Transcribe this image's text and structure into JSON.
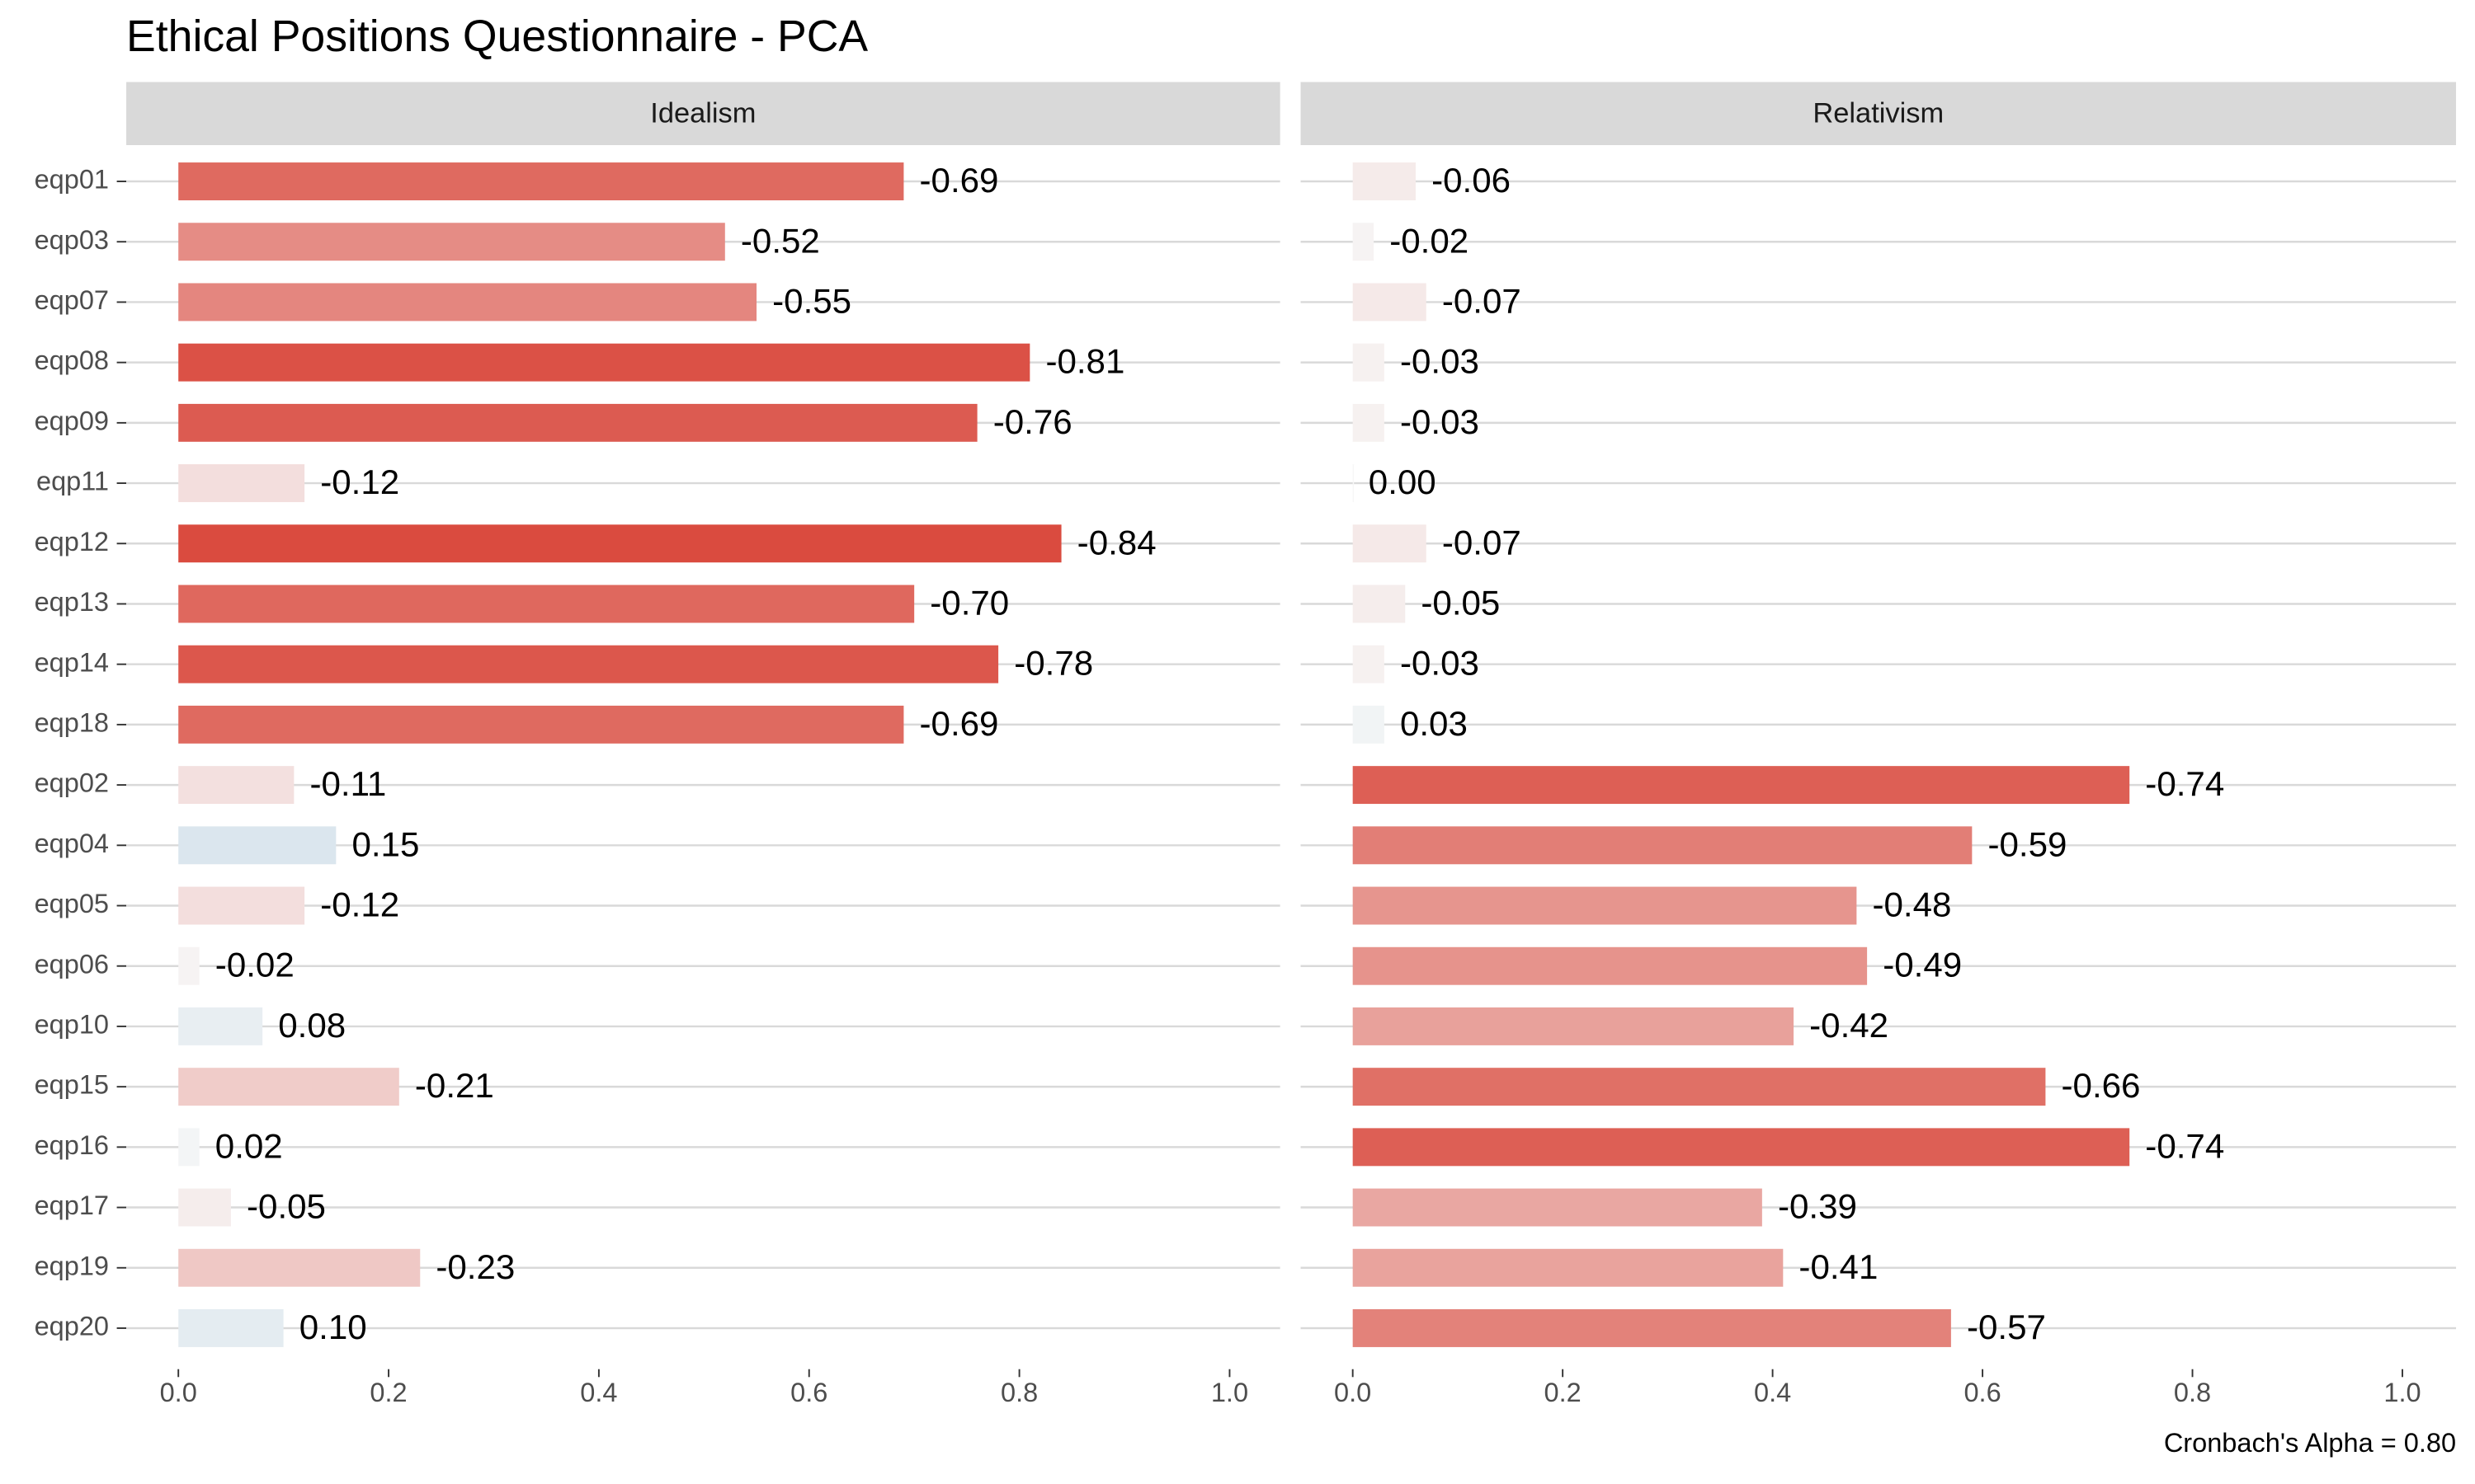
{
  "chart_data": {
    "type": "bar",
    "title": "Ethical Positions Questionnaire - PCA",
    "categories": [
      "eqp01",
      "eqp03",
      "eqp07",
      "eqp08",
      "eqp09",
      "eqp11",
      "eqp12",
      "eqp13",
      "eqp14",
      "eqp18",
      "eqp02",
      "eqp04",
      "eqp05",
      "eqp06",
      "eqp10",
      "eqp15",
      "eqp16",
      "eqp17",
      "eqp19",
      "eqp20"
    ],
    "facets": [
      {
        "name": "Idealism",
        "values": [
          -0.69,
          -0.52,
          -0.55,
          -0.81,
          -0.76,
          -0.12,
          -0.84,
          -0.7,
          -0.78,
          -0.69,
          -0.11,
          0.15,
          -0.12,
          -0.02,
          0.08,
          -0.21,
          0.02,
          -0.05,
          -0.23,
          0.1
        ],
        "value_labels": [
          "-0.69",
          "-0.52",
          "-0.55",
          "-0.81",
          "-0.76",
          "-0.12",
          "-0.84",
          "-0.70",
          "-0.78",
          "-0.69",
          "-0.11",
          "0.15",
          "-0.12",
          "-0.02",
          "0.08",
          "-0.21",
          "0.02",
          "-0.05",
          "-0.23",
          "0.10"
        ]
      },
      {
        "name": "Relativism",
        "values": [
          -0.06,
          -0.02,
          -0.07,
          -0.03,
          -0.03,
          0.0,
          -0.07,
          -0.05,
          -0.03,
          0.03,
          -0.74,
          -0.59,
          -0.48,
          -0.49,
          -0.42,
          -0.66,
          -0.74,
          -0.39,
          -0.41,
          -0.57
        ],
        "value_labels": [
          "-0.06",
          "-0.02",
          "-0.07",
          "-0.03",
          "-0.03",
          "0.00",
          "-0.07",
          "-0.05",
          "-0.03",
          "0.03",
          "-0.74",
          "-0.59",
          "-0.48",
          "-0.49",
          "-0.42",
          "-0.66",
          "-0.74",
          "-0.39",
          "-0.41",
          "-0.57"
        ]
      }
    ],
    "xlim": [
      0,
      1
    ],
    "xticks": [
      {
        "value": 0,
        "label": "0.0"
      },
      {
        "value": 0.2,
        "label": "0.2"
      },
      {
        "value": 0.4,
        "label": "0.4"
      },
      {
        "value": 0.6,
        "label": "0.6"
      },
      {
        "value": 0.8,
        "label": "0.8"
      },
      {
        "value": 1,
        "label": "1.0"
      }
    ],
    "color_negative": "#d42a1c",
    "color_zero": "#f7f7f7",
    "color_positive": "#3c86bb",
    "grid": true,
    "caption": "Cronbach's Alpha = 0.80"
  }
}
